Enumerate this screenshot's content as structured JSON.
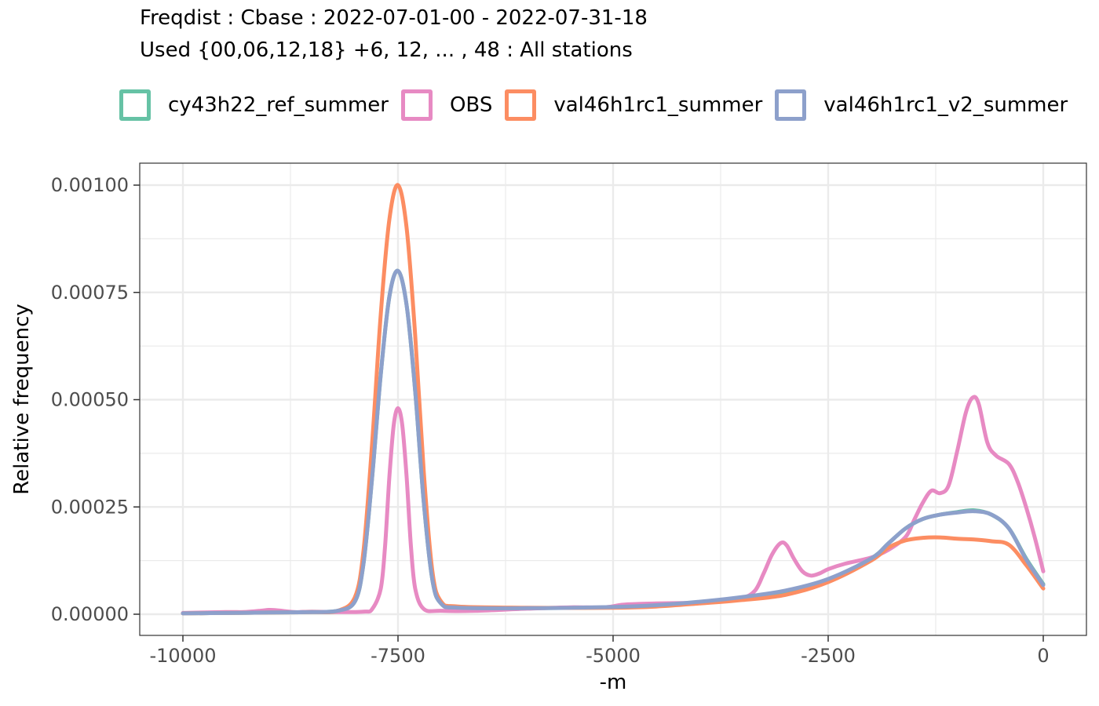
{
  "chart_data": {
    "type": "line",
    "title": "Freqdist : Cbase : 2022-07-01-00 - 2022-07-31-18",
    "subtitle": "Used {00,06,12,18} +6, 12, ... , 48 : All stations",
    "xlabel": "-m",
    "ylabel": "Relative frequency",
    "xlim": [
      -10000,
      0
    ],
    "ylim": [
      0,
      0.00105
    ],
    "x_ticks": [
      -10000,
      -7500,
      -5000,
      -2500,
      0
    ],
    "x_tick_labels": [
      "-10000",
      "-7500",
      "-5000",
      "-2500",
      "0"
    ],
    "y_ticks": [
      0,
      0.00025,
      0.0005,
      0.00075,
      0.001
    ],
    "y_tick_labels": [
      "0.00000",
      "0.00025",
      "0.00050",
      "0.00075",
      "0.00100"
    ],
    "grid": true,
    "legend_position": "top",
    "series": [
      {
        "name": "cy43h22_ref_summer",
        "color": "#66c2a5",
        "points": [
          [
            -10000,
            2e-06
          ],
          [
            -9500,
            3e-06
          ],
          [
            -9000,
            4e-06
          ],
          [
            -8500,
            5e-06
          ],
          [
            -8200,
            8e-06
          ],
          [
            -8000,
            3e-05
          ],
          [
            -7900,
            0.00012
          ],
          [
            -7800,
            0.00032
          ],
          [
            -7700,
            0.00056
          ],
          [
            -7600,
            0.00074
          ],
          [
            -7500,
            0.0008
          ],
          [
            -7400,
            0.00072
          ],
          [
            -7300,
            0.00052
          ],
          [
            -7200,
            0.00026
          ],
          [
            -7100,
            8e-05
          ],
          [
            -7000,
            2.5e-05
          ],
          [
            -6800,
            1.5e-05
          ],
          [
            -6000,
            1.4e-05
          ],
          [
            -5000,
            1.6e-05
          ],
          [
            -4500,
            2e-05
          ],
          [
            -4000,
            2.8e-05
          ],
          [
            -3500,
            3.8e-05
          ],
          [
            -3000,
            5.2e-05
          ],
          [
            -2500,
            8e-05
          ],
          [
            -2000,
            0.00013
          ],
          [
            -1800,
            0.000165
          ],
          [
            -1600,
            0.0002
          ],
          [
            -1400,
            0.000222
          ],
          [
            -1200,
            0.000232
          ],
          [
            -1000,
            0.000238
          ],
          [
            -800,
            0.000242
          ],
          [
            -600,
            0.000232
          ],
          [
            -400,
            0.0002
          ],
          [
            -200,
            0.00013
          ],
          [
            0,
            7e-05
          ]
        ]
      },
      {
        "name": "OBS",
        "color": "#e78ac3",
        "points": [
          [
            -10000,
            3e-06
          ],
          [
            -9500,
            5e-06
          ],
          [
            -9300,
            5e-06
          ],
          [
            -9100,
            8e-06
          ],
          [
            -9000,
            1e-05
          ],
          [
            -8900,
            9e-06
          ],
          [
            -8700,
            5e-06
          ],
          [
            -8500,
            6e-06
          ],
          [
            -8200,
            5e-06
          ],
          [
            -7900,
            6e-06
          ],
          [
            -7800,
            1.2e-05
          ],
          [
            -7700,
            6e-05
          ],
          [
            -7650,
            0.00016
          ],
          [
            -7600,
            0.00032
          ],
          [
            -7550,
            0.00044
          ],
          [
            -7500,
            0.00048
          ],
          [
            -7450,
            0.00044
          ],
          [
            -7400,
            0.00032
          ],
          [
            -7350,
            0.00016
          ],
          [
            -7300,
            6e-05
          ],
          [
            -7200,
            1.2e-05
          ],
          [
            -7000,
            8e-06
          ],
          [
            -6600,
            8e-06
          ],
          [
            -6000,
            1.3e-05
          ],
          [
            -5500,
            1.6e-05
          ],
          [
            -5100,
            1.6e-05
          ],
          [
            -4900,
            2.2e-05
          ],
          [
            -4700,
            2.4e-05
          ],
          [
            -4500,
            2.5e-05
          ],
          [
            -4200,
            2.6e-05
          ],
          [
            -4000,
            2.7e-05
          ],
          [
            -3800,
            3e-05
          ],
          [
            -3500,
            3.8e-05
          ],
          [
            -3350,
            5.5e-05
          ],
          [
            -3250,
            9.5e-05
          ],
          [
            -3150,
            0.00014
          ],
          [
            -3050,
            0.000166
          ],
          [
            -2980,
            0.00016
          ],
          [
            -2900,
            0.00013
          ],
          [
            -2800,
            0.0001
          ],
          [
            -2700,
            9e-05
          ],
          [
            -2600,
            9.5e-05
          ],
          [
            -2500,
            0.000105
          ],
          [
            -2300,
            0.000118
          ],
          [
            -2000,
            0.000132
          ],
          [
            -1800,
            0.00015
          ],
          [
            -1600,
            0.00018
          ],
          [
            -1500,
            0.00022
          ],
          [
            -1400,
            0.00026
          ],
          [
            -1300,
            0.000288
          ],
          [
            -1200,
            0.000282
          ],
          [
            -1100,
            0.0003
          ],
          [
            -1000,
            0.00038
          ],
          [
            -900,
            0.00047
          ],
          [
            -820,
            0.000505
          ],
          [
            -750,
            0.00049
          ],
          [
            -650,
            0.0004
          ],
          [
            -550,
            0.00037
          ],
          [
            -400,
            0.00035
          ],
          [
            -300,
            0.00031
          ],
          [
            -200,
            0.00025
          ],
          [
            -100,
            0.00018
          ],
          [
            0,
            0.0001
          ]
        ]
      },
      {
        "name": "val46h1rc1_summer",
        "color": "#fc8d62",
        "points": [
          [
            -10000,
            2e-06
          ],
          [
            -9500,
            3e-06
          ],
          [
            -9000,
            4e-06
          ],
          [
            -8500,
            5e-06
          ],
          [
            -8200,
            8e-06
          ],
          [
            -8000,
            4e-05
          ],
          [
            -7900,
            0.00015
          ],
          [
            -7800,
            0.0004
          ],
          [
            -7700,
            0.0007
          ],
          [
            -7600,
            0.00092
          ],
          [
            -7500,
            0.001
          ],
          [
            -7400,
            0.0009
          ],
          [
            -7300,
            0.00065
          ],
          [
            -7200,
            0.00033
          ],
          [
            -7100,
            0.0001
          ],
          [
            -7000,
            3e-05
          ],
          [
            -6800,
            1.8e-05
          ],
          [
            -6000,
            1.5e-05
          ],
          [
            -5000,
            1.5e-05
          ],
          [
            -4500,
            1.8e-05
          ],
          [
            -4000,
            2.5e-05
          ],
          [
            -3500,
            3.3e-05
          ],
          [
            -3000,
            4.5e-05
          ],
          [
            -2500,
            7.5e-05
          ],
          [
            -2000,
            0.000125
          ],
          [
            -1800,
            0.000155
          ],
          [
            -1600,
            0.000172
          ],
          [
            -1400,
            0.000178
          ],
          [
            -1200,
            0.000179
          ],
          [
            -1000,
            0.000176
          ],
          [
            -800,
            0.000174
          ],
          [
            -600,
            0.00017
          ],
          [
            -400,
            0.000162
          ],
          [
            -200,
            0.000115
          ],
          [
            0,
            6e-05
          ]
        ]
      },
      {
        "name": "val46h1rc1_v2_summer",
        "color": "#8da0cb",
        "points": [
          [
            -10000,
            2e-06
          ],
          [
            -9500,
            3e-06
          ],
          [
            -9000,
            4e-06
          ],
          [
            -8500,
            5e-06
          ],
          [
            -8200,
            8e-06
          ],
          [
            -8000,
            3e-05
          ],
          [
            -7900,
            0.00012
          ],
          [
            -7800,
            0.00032
          ],
          [
            -7700,
            0.00056
          ],
          [
            -7600,
            0.00074
          ],
          [
            -7500,
            0.0008
          ],
          [
            -7400,
            0.00072
          ],
          [
            -7300,
            0.00052
          ],
          [
            -7200,
            0.00026
          ],
          [
            -7100,
            8e-05
          ],
          [
            -7000,
            2.5e-05
          ],
          [
            -6800,
            1.5e-05
          ],
          [
            -6000,
            1.4e-05
          ],
          [
            -5000,
            1.7e-05
          ],
          [
            -4500,
            2.1e-05
          ],
          [
            -4000,
            2.9e-05
          ],
          [
            -3500,
            4e-05
          ],
          [
            -3000,
            5.5e-05
          ],
          [
            -2500,
            8.2e-05
          ],
          [
            -2000,
            0.00013
          ],
          [
            -1800,
            0.000165
          ],
          [
            -1600,
            0.0002
          ],
          [
            -1400,
            0.000222
          ],
          [
            -1200,
            0.000232
          ],
          [
            -1000,
            0.000237
          ],
          [
            -800,
            0.00024
          ],
          [
            -600,
            0.000232
          ],
          [
            -400,
            0.0002
          ],
          [
            -200,
            0.000128
          ],
          [
            0,
            6.8e-05
          ]
        ]
      }
    ]
  }
}
